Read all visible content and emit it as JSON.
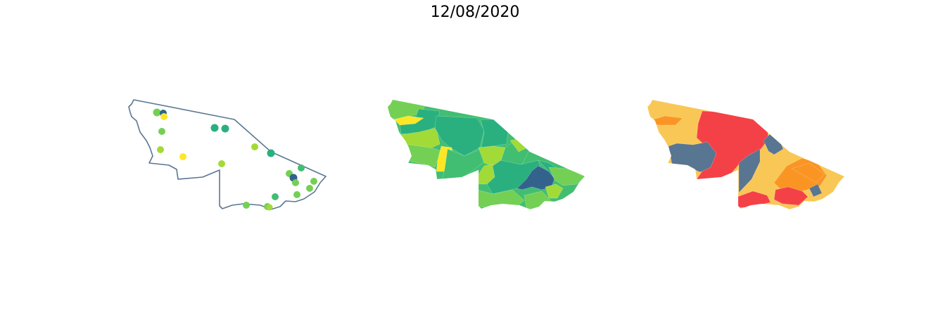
{
  "title": "12/08/2020",
  "colors": {
    "outline": "#5a7792",
    "viridis_dark": "#33638d",
    "viridis_teal": "#2ab07f",
    "viridis_green": "#41be71",
    "viridis_lightgreen": "#74d055",
    "viridis_lime": "#a2da37",
    "viridis_yellow": "#fde725",
    "cat_red": "#f44147",
    "cat_orange": "#fa9524",
    "cat_yellow": "#f9c755",
    "cat_slate": "#587592"
  },
  "panels": [
    {
      "name": "points-map",
      "style": "outline-with-points"
    },
    {
      "name": "continuous-choropleth",
      "style": "viridis-fill"
    },
    {
      "name": "categorical-choropleth",
      "style": "category-fill"
    }
  ]
}
